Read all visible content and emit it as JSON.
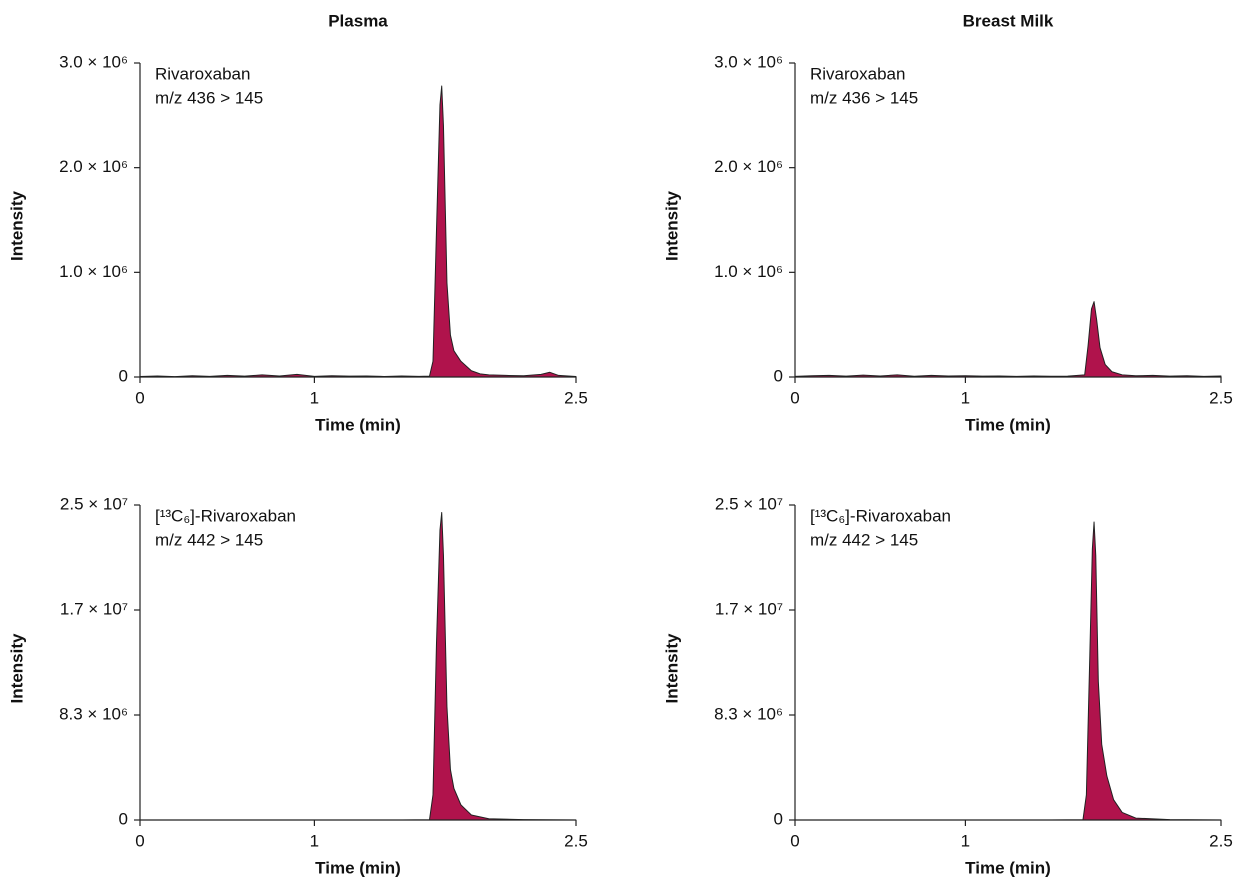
{
  "chart_data": [
    {
      "type": "area",
      "title": "Plasma",
      "annotations": [
        "Rivaroxaban",
        "m/z 436 > 145"
      ],
      "xlabel": "Time (min)",
      "ylabel": "Intensity",
      "color": "#b0134c",
      "x": [
        0,
        0.1,
        0.2,
        0.3,
        0.4,
        0.5,
        0.6,
        0.7,
        0.8,
        0.9,
        1.0,
        1.1,
        1.2,
        1.3,
        1.4,
        1.5,
        1.6,
        1.66,
        1.68,
        1.7,
        1.72,
        1.73,
        1.74,
        1.76,
        1.78,
        1.8,
        1.84,
        1.9,
        1.95,
        2.0,
        2.1,
        2.2,
        2.3,
        2.35,
        2.4,
        2.5
      ],
      "values": [
        5000,
        10000,
        4000,
        12000,
        6000,
        15000,
        8000,
        20000,
        10000,
        25000,
        6000,
        12000,
        8000,
        10000,
        5000,
        9000,
        6000,
        8000,
        150000,
        1400000,
        2600000,
        2780000,
        2400000,
        900000,
        400000,
        250000,
        150000,
        60000,
        30000,
        20000,
        15000,
        12000,
        25000,
        45000,
        15000,
        5000
      ],
      "xlim": [
        0,
        2.5
      ],
      "xticks": [
        0,
        1,
        2.5
      ],
      "ylim": [
        0,
        3000000
      ],
      "yticks": [
        0,
        {
          "value": 1000000,
          "label": "1.0 × 10⁶"
        },
        {
          "value": 2000000,
          "label": "2.0 × 10⁶"
        },
        {
          "value": 3000000,
          "label": "3.0 × 10⁶"
        }
      ]
    },
    {
      "type": "area",
      "title": "Breast Milk",
      "annotations": [
        "Rivaroxaban",
        "m/z 436 > 145"
      ],
      "xlabel": "Time (min)",
      "ylabel": "Intensity",
      "color": "#b0134c",
      "x": [
        0,
        0.1,
        0.2,
        0.3,
        0.4,
        0.5,
        0.6,
        0.7,
        0.8,
        0.9,
        1.0,
        1.1,
        1.2,
        1.3,
        1.4,
        1.5,
        1.6,
        1.7,
        1.72,
        1.74,
        1.755,
        1.77,
        1.79,
        1.82,
        1.86,
        1.92,
        2.0,
        2.1,
        2.2,
        2.3,
        2.4,
        2.5
      ],
      "values": [
        6000,
        12000,
        15000,
        8000,
        18000,
        10000,
        20000,
        7000,
        15000,
        9000,
        12000,
        8000,
        10000,
        6000,
        9000,
        7000,
        8000,
        20000,
        300000,
        650000,
        720000,
        550000,
        280000,
        120000,
        50000,
        20000,
        12000,
        15000,
        8000,
        12000,
        6000,
        10000
      ],
      "xlim": [
        0,
        2.5
      ],
      "xticks": [
        0,
        1,
        2.5
      ],
      "ylim": [
        0,
        3000000
      ],
      "yticks": [
        0,
        {
          "value": 1000000,
          "label": "1.0 × 10⁶"
        },
        {
          "value": 2000000,
          "label": "2.0 × 10⁶"
        },
        {
          "value": 3000000,
          "label": "3.0 × 10⁶"
        }
      ]
    },
    {
      "type": "area",
      "annotations": [
        "[¹³C₆]-Rivaroxaban",
        "m/z 442 > 145"
      ],
      "xlabel": "Time (min)",
      "ylabel": "Intensity",
      "color": "#b0134c",
      "x": [
        0,
        0.5,
        1.0,
        1.5,
        1.66,
        1.68,
        1.7,
        1.72,
        1.73,
        1.74,
        1.76,
        1.78,
        1.8,
        1.84,
        1.9,
        2.0,
        2.2,
        2.5
      ],
      "values": [
        0,
        0,
        0,
        0,
        20000,
        2000000,
        14000000,
        23000000,
        24400000,
        21000000,
        9000000,
        4000000,
        2500000,
        1200000,
        400000,
        100000,
        30000,
        0
      ],
      "xlim": [
        0,
        2.5
      ],
      "xticks": [
        0,
        1,
        2.5
      ],
      "ylim": [
        0,
        25000000
      ],
      "yticks": [
        0,
        {
          "value": 8333333,
          "label": "8.3 × 10⁶"
        },
        {
          "value": 16666667,
          "label": "1.7 × 10⁷"
        },
        {
          "value": 25000000,
          "label": "2.5 × 10⁷"
        }
      ]
    },
    {
      "type": "area",
      "annotations": [
        "[¹³C₆]-Rivaroxaban",
        "m/z 442 > 145"
      ],
      "xlabel": "Time (min)",
      "ylabel": "Intensity",
      "color": "#b0134c",
      "x": [
        0,
        0.5,
        1.0,
        1.5,
        1.69,
        1.71,
        1.73,
        1.745,
        1.755,
        1.765,
        1.78,
        1.8,
        1.83,
        1.87,
        1.92,
        2.0,
        2.2,
        2.5
      ],
      "values": [
        0,
        0,
        0,
        0,
        20000,
        2000000,
        13000000,
        21500000,
        23650000,
        21000000,
        11000000,
        6000000,
        3500000,
        1600000,
        600000,
        150000,
        30000,
        0
      ],
      "xlim": [
        0,
        2.5
      ],
      "xticks": [
        0,
        1,
        2.5
      ],
      "ylim": [
        0,
        25000000
      ],
      "yticks": [
        0,
        {
          "value": 8333333,
          "label": "8.3 × 10⁶"
        },
        {
          "value": 16666667,
          "label": "1.7 × 10⁷"
        },
        {
          "value": 25000000,
          "label": "2.5 × 10⁷"
        }
      ]
    }
  ]
}
